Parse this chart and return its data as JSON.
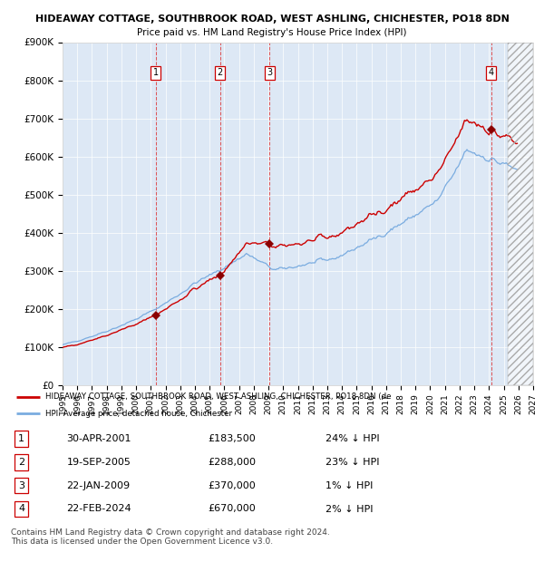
{
  "title1": "HIDEAWAY COTTAGE, SOUTHBROOK ROAD, WEST ASHLING, CHICHESTER, PO18 8DN",
  "title2": "Price paid vs. HM Land Registry's House Price Index (HPI)",
  "bg_color": "#dde8f5",
  "purchases": [
    {
      "num": 1,
      "date_str": "30-APR-2001",
      "price": 183500,
      "year": 2001.33,
      "pct": "24%"
    },
    {
      "num": 2,
      "date_str": "19-SEP-2005",
      "price": 288000,
      "year": 2005.72,
      "pct": "23%"
    },
    {
      "num": 3,
      "date_str": "22-JAN-2009",
      "price": 370000,
      "year": 2009.06,
      "pct": "1%"
    },
    {
      "num": 4,
      "date_str": "22-FEB-2024",
      "price": 670000,
      "year": 2024.14,
      "pct": "2%"
    }
  ],
  "legend_label_red": "HIDEAWAY COTTAGE, SOUTHBROOK ROAD, WEST ASHLING, CHICHESTER, PO18 8DN (de",
  "legend_label_blue": "HPI: Average price, detached house, Chichester",
  "footer": "Contains HM Land Registry data © Crown copyright and database right 2024.\nThis data is licensed under the Open Government Licence v3.0.",
  "xmin": 1995,
  "xmax": 2027,
  "ymin": 0,
  "ymax": 900000,
  "yticks": [
    0,
    100000,
    200000,
    300000,
    400000,
    500000,
    600000,
    700000,
    800000,
    900000
  ],
  "ytick_labels": [
    "£0",
    "£100K",
    "£200K",
    "£300K",
    "£400K",
    "£500K",
    "£600K",
    "£700K",
    "£800K",
    "£900K"
  ],
  "red_color": "#cc0000",
  "blue_color": "#7aace0",
  "marker_color": "#8b0000",
  "hatch_start": 2025.25
}
